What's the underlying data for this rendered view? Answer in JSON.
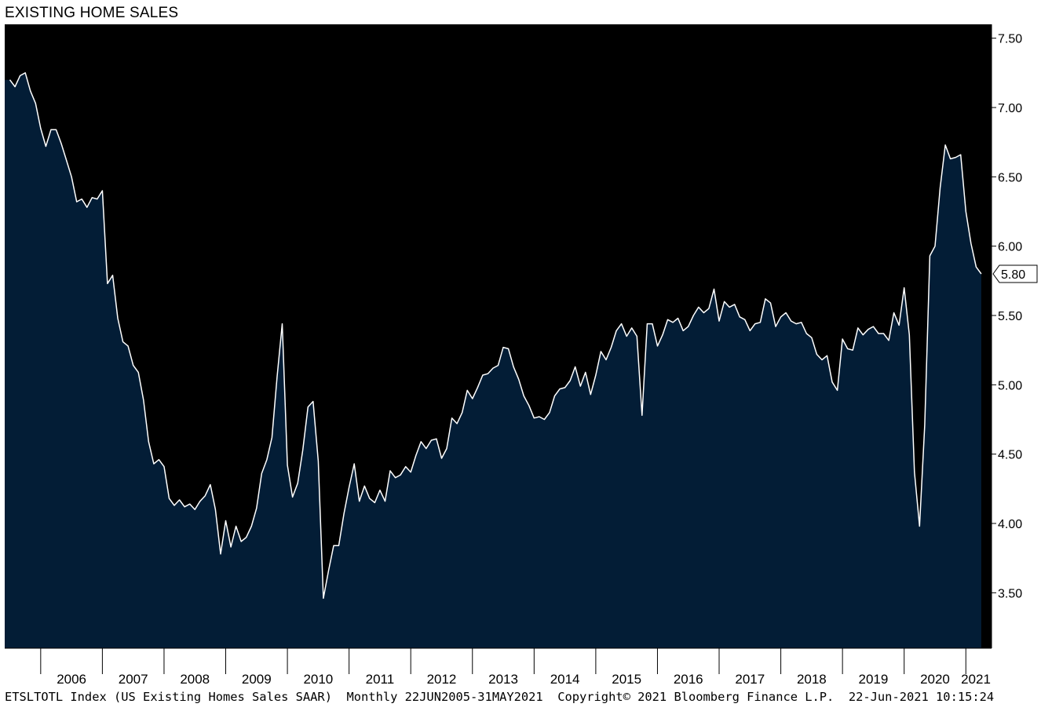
{
  "chart_data": {
    "type": "area",
    "title": "EXISTING HOME SALES",
    "frequency": "monthly",
    "x_start": "2005-07",
    "x_end": "2021-05",
    "xlim": [
      "2005-06",
      "2021-06"
    ],
    "ylim": [
      3.1,
      7.6
    ],
    "yticks": [
      "7.50",
      "7.00",
      "6.50",
      "6.00",
      "5.50",
      "5.00",
      "4.50",
      "4.00",
      "3.50"
    ],
    "xticks": [
      "2006",
      "2007",
      "2008",
      "2009",
      "2010",
      "2011",
      "2012",
      "2013",
      "2014",
      "2015",
      "2016",
      "2017",
      "2018",
      "2019",
      "2020",
      "2021"
    ],
    "last_value_label": "5.80",
    "values": [
      7.2,
      7.15,
      7.23,
      7.25,
      7.12,
      7.03,
      6.85,
      6.72,
      6.84,
      6.84,
      6.74,
      6.62,
      6.5,
      6.32,
      6.34,
      6.28,
      6.35,
      6.34,
      6.4,
      5.73,
      5.79,
      5.48,
      5.31,
      5.28,
      5.14,
      5.09,
      4.89,
      4.59,
      4.43,
      4.46,
      4.41,
      4.18,
      4.13,
      4.17,
      4.12,
      4.14,
      4.1,
      4.16,
      4.2,
      4.28,
      4.1,
      3.78,
      4.02,
      3.83,
      3.98,
      3.87,
      3.9,
      3.98,
      4.11,
      4.36,
      4.46,
      4.62,
      5.06,
      5.44,
      4.42,
      4.19,
      4.29,
      4.53,
      4.84,
      4.88,
      4.45,
      3.46,
      3.66,
      3.84,
      3.84,
      4.07,
      4.26,
      4.43,
      4.16,
      4.27,
      4.18,
      4.15,
      4.24,
      4.16,
      4.38,
      4.33,
      4.35,
      4.41,
      4.37,
      4.49,
      4.59,
      4.54,
      4.6,
      4.61,
      4.47,
      4.54,
      4.76,
      4.72,
      4.8,
      4.96,
      4.9,
      4.98,
      5.07,
      5.08,
      5.12,
      5.14,
      5.27,
      5.26,
      5.13,
      5.04,
      4.92,
      4.85,
      4.76,
      4.77,
      4.75,
      4.8,
      4.92,
      4.97,
      4.98,
      5.03,
      5.13,
      4.99,
      5.09,
      4.93,
      5.07,
      5.24,
      5.18,
      5.27,
      5.39,
      5.44,
      5.35,
      5.41,
      5.35,
      4.78,
      5.44,
      5.44,
      5.28,
      5.36,
      5.47,
      5.45,
      5.48,
      5.39,
      5.42,
      5.5,
      5.56,
      5.52,
      5.55,
      5.69,
      5.46,
      5.6,
      5.56,
      5.58,
      5.49,
      5.47,
      5.39,
      5.44,
      5.45,
      5.62,
      5.59,
      5.42,
      5.49,
      5.52,
      5.46,
      5.44,
      5.45,
      5.37,
      5.34,
      5.22,
      5.18,
      5.21,
      5.02,
      4.96,
      5.33,
      5.26,
      5.25,
      5.41,
      5.36,
      5.4,
      5.42,
      5.37,
      5.37,
      5.32,
      5.52,
      5.43,
      5.7,
      5.36,
      4.37,
      3.98,
      4.71,
      5.93,
      6.0,
      6.42,
      6.73,
      6.63,
      6.64,
      6.66,
      6.25,
      6.02,
      5.85,
      5.8
    ]
  },
  "footer": {
    "text": "ETSLTOTL Index (US Existing Homes Sales SAAR)  Monthly 22JUN2005-31MAY2021  Copyright© 2021 Bloomberg Finance L.P.  22-Jun-2021 10:15:24"
  },
  "colors": {
    "plot_background": "#000000",
    "area_fill": "#031D36",
    "line": "#ffffff",
    "frame": "#000000",
    "page": "#ffffff"
  }
}
